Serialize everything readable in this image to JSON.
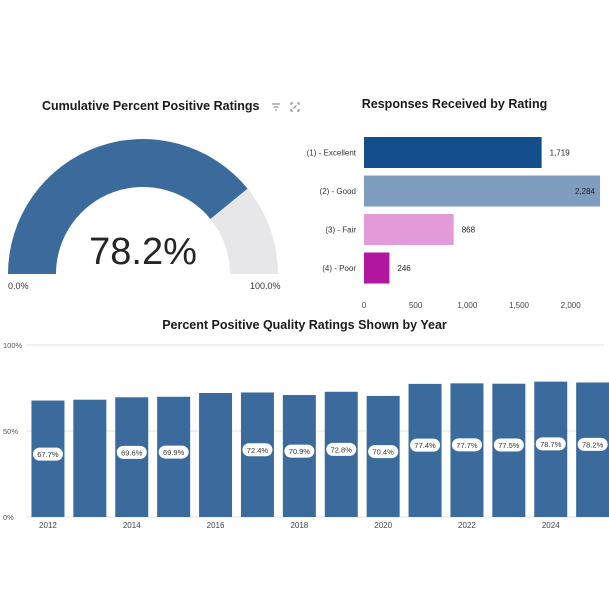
{
  "gauge": {
    "title": "Cumulative Percent Positive Ratings",
    "value_label": "78.2%",
    "min_label": "0.0%",
    "max_label": "100.0%",
    "fraction": 0.782,
    "colors": {
      "fill": "#3b6b9d",
      "track": "#e7e7e9"
    },
    "icons": [
      "filter-icon",
      "focus-mode-icon"
    ]
  },
  "chart_data": [
    {
      "type": "bar",
      "orientation": "horizontal",
      "title": "Responses Received by Rating",
      "categories": [
        "(1) - Excellent",
        "(2) - Good",
        "(3) - Fair",
        "(4) - Poor"
      ],
      "values": [
        1719,
        2284,
        868,
        246
      ],
      "value_labels": [
        "1,719",
        "2,284",
        "868",
        "246"
      ],
      "colors": [
        "#154e8c",
        "#7f9dbe",
        "#e39ad8",
        "#b0169e"
      ],
      "x_ticks": [
        0,
        500,
        1000,
        1500,
        2000
      ],
      "x_tick_labels": [
        "0",
        "500",
        "1,000",
        "1,500",
        "2,000"
      ],
      "xlim": [
        0,
        2400
      ]
    },
    {
      "type": "bar",
      "title": "Percent Positive Quality Ratings Shown by Year",
      "categories": [
        2012,
        2013,
        2014,
        2015,
        2016,
        2017,
        2018,
        2019,
        2020,
        2021,
        2022,
        2023,
        2024,
        2025
      ],
      "values": [
        67.7,
        68.2,
        69.6,
        69.9,
        72.1,
        72.4,
        70.9,
        72.8,
        70.4,
        77.4,
        77.7,
        77.5,
        78.7,
        78.2
      ],
      "data_labels": [
        "67.7%",
        "",
        "69.6%",
        "69.9%",
        "",
        "72.4%",
        "70.9%",
        "72.8%",
        "70.4%",
        "77.4%",
        "77.7%",
        "77.5%",
        "78.7%",
        "78.2%"
      ],
      "x_tick_labels": [
        "2012",
        "2014",
        "2016",
        "2018",
        "2020",
        "2022",
        "2024"
      ],
      "y_tick_labels": [
        "100%",
        "50%",
        "0%"
      ],
      "ylim": [
        0,
        100
      ],
      "color": "#3b6b9d"
    }
  ]
}
